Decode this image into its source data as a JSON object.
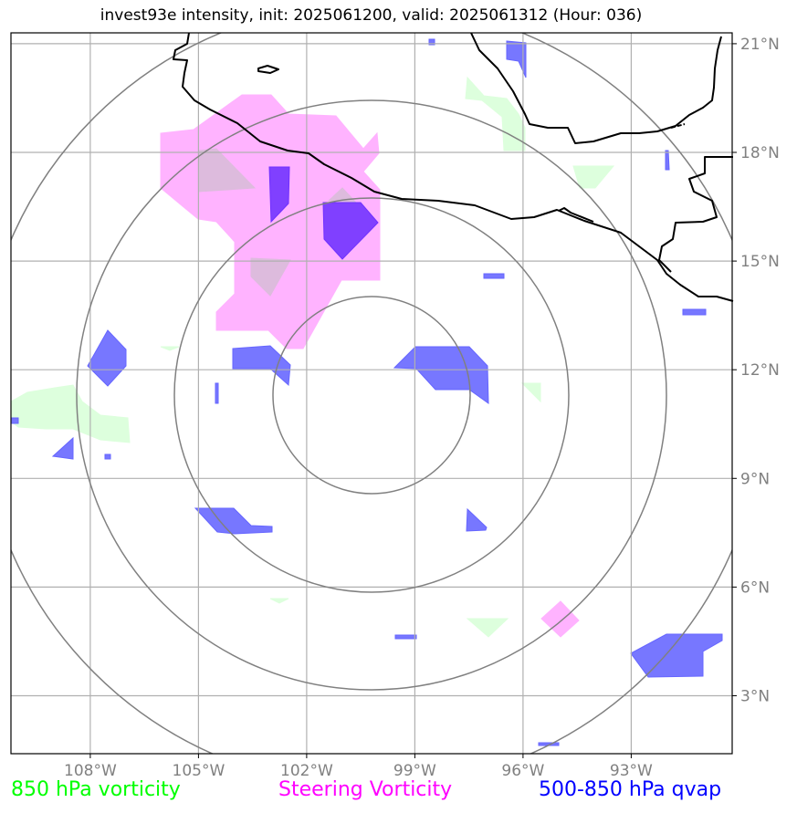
{
  "title": "invest93e intensity, init: 2025061200, valid: 2025061312 (Hour: 036)",
  "lon_ticks": [
    "108°W",
    "105°W",
    "102°W",
    "99°W",
    "96°W",
    "93°W"
  ],
  "lat_ticks": [
    "21°N",
    "18°N",
    "15°N",
    "12°N",
    "9°N",
    "6°N",
    "3°N"
  ],
  "legend": [
    {
      "label": "850 hPa vorticity",
      "color": "#00ff00"
    },
    {
      "label": "Steering Vorticity",
      "color": "#ff00ff"
    },
    {
      "label": "500-850 hPa qvap",
      "color": "#0000ff"
    }
  ],
  "colors": {
    "vorticity_850_fill": "#ddffdd",
    "steering_fill": "#ffb3ff",
    "qvap_fill": "#7777ff",
    "overlap_fill": "#8040ff",
    "range_rings": "#808080",
    "gridlines": "#b0b0b0",
    "coastline": "#000000"
  },
  "map": {
    "extent": {
      "lon_min": -110.2,
      "lon_max": -90.2,
      "lat_min": 1.4,
      "lat_max": 21.3
    },
    "storm_center": {
      "lon": -100.2,
      "lat": 11.3
    },
    "range_ring_count": 4
  }
}
